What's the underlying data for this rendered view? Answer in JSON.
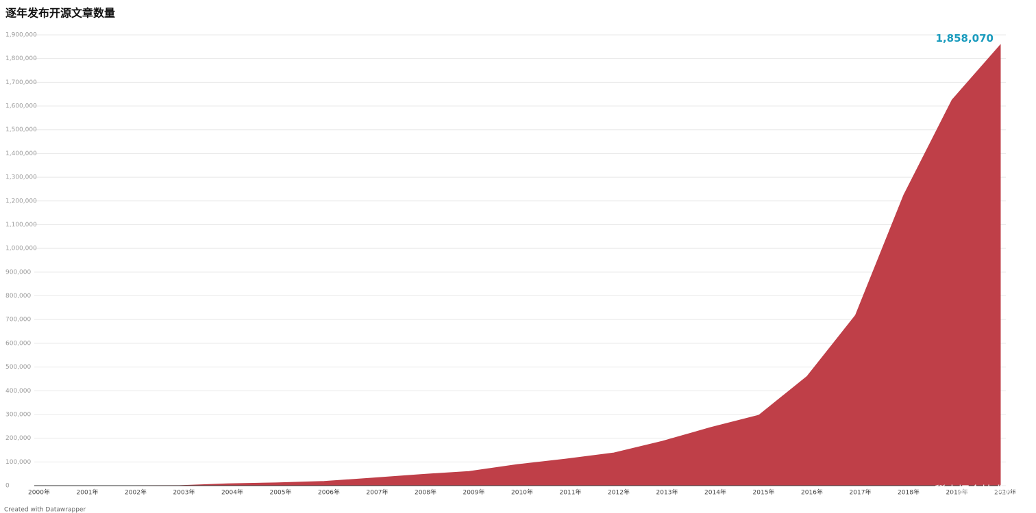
{
  "chart_data": {
    "type": "area",
    "title": "逐年发布开源文章数量",
    "categories": [
      "2000年",
      "2001年",
      "2002年",
      "2003年",
      "2004年",
      "2005年",
      "2006年",
      "2007年",
      "2008年",
      "2009年",
      "2010年",
      "2011年",
      "2012年",
      "2013年",
      "2014年",
      "2015年",
      "2016年",
      "2017年",
      "2018年",
      "2019年",
      "2020年"
    ],
    "values": [
      0,
      0,
      0,
      500,
      8000,
      12000,
      18000,
      32000,
      47000,
      60000,
      89000,
      112000,
      138000,
      187000,
      245000,
      297000,
      461000,
      718000,
      1225000,
      1626000,
      1858070
    ],
    "value_labels": [
      null,
      null,
      null,
      null,
      null,
      null,
      null,
      null,
      null,
      null,
      null,
      null,
      null,
      null,
      null,
      null,
      null,
      null,
      null,
      null,
      "1,858,070"
    ],
    "color": "#bf3f48",
    "ylim": [
      0,
      1900000
    ],
    "yticks": [
      0,
      {
        "value": 100000,
        "label": "100,000"
      },
      {
        "value": 200000,
        "label": "200,000"
      },
      {
        "value": 300000,
        "label": "300,000"
      },
      {
        "value": 400000,
        "label": "400,000"
      },
      {
        "value": 500000,
        "label": "500,000"
      },
      {
        "value": 600000,
        "label": "600,000"
      },
      {
        "value": 700000,
        "label": "700,000"
      },
      {
        "value": 800000,
        "label": "800,000"
      },
      {
        "value": 900000,
        "label": "900,000"
      },
      {
        "value": 1000000,
        "label": "1,000,000"
      },
      {
        "value": 1100000,
        "label": "1,100,000"
      },
      {
        "value": 1200000,
        "label": "1,200,000"
      },
      {
        "value": 1300000,
        "label": "1,300,000"
      },
      {
        "value": 1400000,
        "label": "1,400,000"
      },
      {
        "value": 1500000,
        "label": "1,500,000"
      },
      {
        "value": 1600000,
        "label": "1,600,000"
      },
      {
        "value": 1700000,
        "label": "1,700,000"
      },
      {
        "value": 1800000,
        "label": "1,800,000"
      },
      {
        "value": 1900000,
        "label": "1,900,000"
      }
    ],
    "grid": true,
    "credit": "Created with Datawrapper",
    "watermark": "@稀土掘金技术社区"
  }
}
